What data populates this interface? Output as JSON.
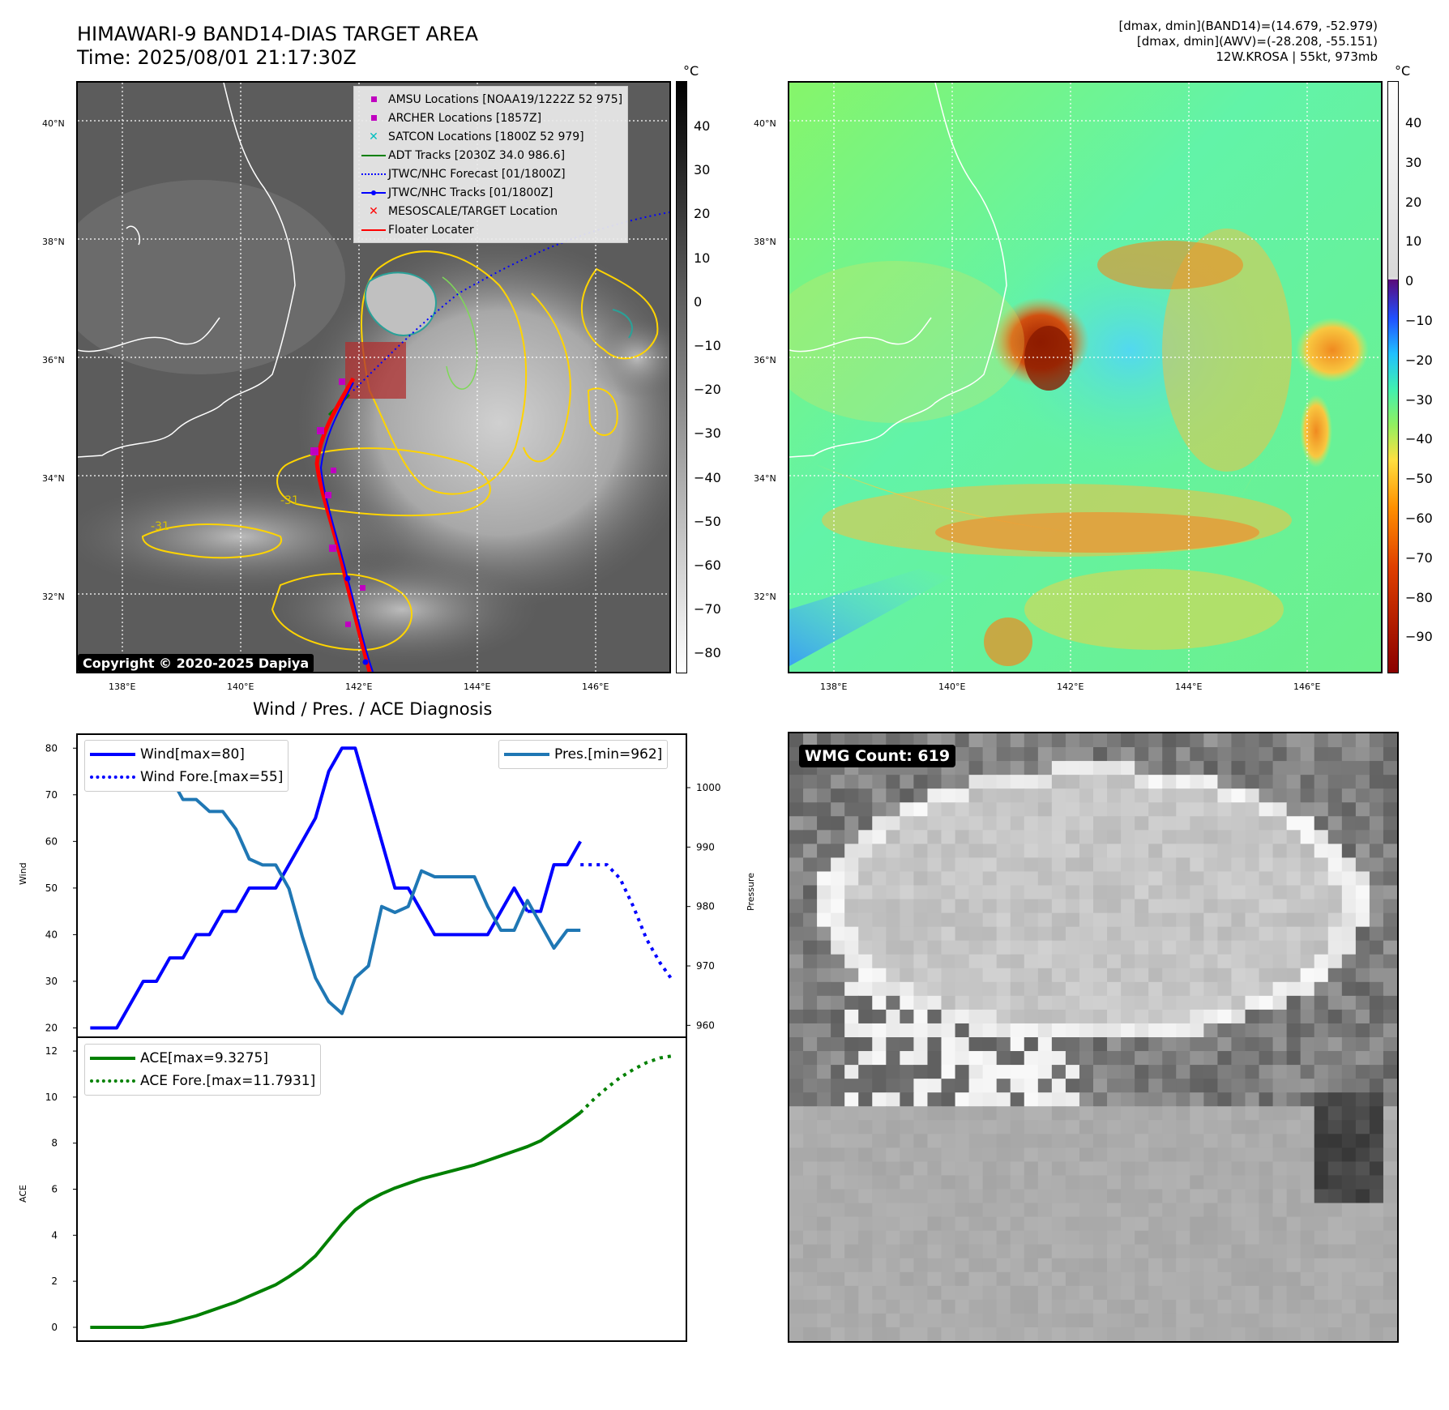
{
  "header": {
    "title_line1": "HIMAWARI-9 BAND14-DIAS TARGET AREA",
    "title_line2": "Time: 2025/08/01 21:17:30Z",
    "stats_line1": "[dmax, dmin](BAND14)=(14.679, -52.979)",
    "stats_line2": "[dmax, dmin](AWV)=(-28.208, -55.151)",
    "stats_line3": "12W.KROSA | 55kt, 973mb"
  },
  "map_common": {
    "lon_ticks": [
      "138°E",
      "140°E",
      "142°E",
      "144°E",
      "146°E"
    ],
    "lat_ticks": [
      "40°N",
      "38°N",
      "36°N",
      "34°N",
      "32°N"
    ],
    "contour_label": "-31"
  },
  "map_left": {
    "colorbar_unit": "°C",
    "colorbar_ticks": [
      "40",
      "30",
      "20",
      "10",
      "0",
      "−10",
      "−20",
      "−30",
      "−40",
      "−50",
      "−60",
      "−70",
      "−80"
    ],
    "copyright": "Copyright © 2020-2025 Dapiya",
    "legend": [
      {
        "label": "AMSU Locations [NOAA19/1222Z 52 975]",
        "symbol": "square",
        "color": "#c000c0"
      },
      {
        "label": "ARCHER Locations [1857Z]",
        "symbol": "square",
        "color": "#c000c0"
      },
      {
        "label": "SATCON Locations [1800Z 52 979]",
        "symbol": "x",
        "color": "#00bfbf"
      },
      {
        "label": "ADT Tracks [2030Z 34.0 986.6]",
        "symbol": "line",
        "color": "#008000"
      },
      {
        "label": "JTWC/NHC Forecast [01/1800Z]",
        "symbol": "dotted",
        "color": "#0000ff"
      },
      {
        "label": "JTWC/NHC Tracks [01/1800Z]",
        "symbol": "line-dot",
        "color": "#0000ff"
      },
      {
        "label": "MESOSCALE/TARGET Location",
        "symbol": "x",
        "color": "#ff0000"
      },
      {
        "label": "Floater Locater",
        "symbol": "line",
        "color": "#ff0000"
      }
    ]
  },
  "map_right": {
    "colorbar_unit": "°C",
    "colorbar_ticks": [
      "40",
      "30",
      "20",
      "10",
      "0",
      "−10",
      "−20",
      "−30",
      "−40",
      "−50",
      "−60",
      "−70",
      "−80",
      "−90"
    ]
  },
  "diagnosis": {
    "title": "Wind / Pres. / ACE Diagnosis",
    "wind_ylabel": "Wind",
    "pres_ylabel": "Pressure",
    "ace_ylabel": "ACE",
    "legend_wind": "Wind[max=80]",
    "legend_wind_fore": "Wind Fore.[max=55]",
    "legend_pres": "Pres.[min=962]",
    "legend_ace": "ACE[max=9.3275]",
    "legend_ace_fore": "ACE Fore.[max=11.7931]"
  },
  "wmg": {
    "label": "WMG Count: 619"
  },
  "chart_data": [
    {
      "type": "line",
      "title": "Wind / Pres. / ACE Diagnosis",
      "ylabel": "Wind",
      "ylim": [
        18,
        83
      ],
      "y_ticks": [
        20,
        30,
        40,
        50,
        60,
        70,
        80
      ],
      "x_range": [
        -1,
        45
      ],
      "series": [
        {
          "name": "Wind[max=80]",
          "color": "#0000ff",
          "style": "solid",
          "x": [
            0,
            1,
            2,
            3,
            4,
            5,
            6,
            7,
            8,
            9,
            10,
            11,
            12,
            13,
            14,
            15,
            16,
            17,
            18,
            19,
            20,
            21,
            22,
            23,
            24,
            25,
            26,
            27,
            28,
            29,
            30,
            31,
            32,
            33
          ],
          "values": [
            20,
            20,
            20,
            25,
            30,
            30,
            35,
            35,
            40,
            40,
            45,
            45,
            50,
            50,
            50,
            55,
            60,
            65,
            75,
            80,
            80,
            70,
            60,
            50,
            50,
            45,
            40,
            40,
            40,
            40,
            40,
            45,
            50,
            45
          ]
        },
        {
          "name": "Wind[max=80]",
          "color": "#0000ff",
          "style": "solid",
          "x": [
            33,
            34,
            35,
            36,
            37
          ],
          "values": [
            45,
            45,
            55,
            55,
            60
          ]
        },
        {
          "name": "Wind Fore.[max=55]",
          "color": "#0000ff",
          "style": "dotted",
          "x": [
            37,
            38,
            39,
            40,
            41,
            42,
            43,
            44
          ],
          "values": [
            55,
            55,
            55,
            52,
            46,
            39,
            34,
            30
          ]
        }
      ]
    },
    {
      "type": "line",
      "ylabel": "Pressure",
      "ylim": [
        958,
        1009
      ],
      "y_ticks": [
        960,
        970,
        980,
        990,
        1000
      ],
      "x_range": [
        -1,
        45
      ],
      "series": [
        {
          "name": "Pres.[min=962]",
          "color": "#1f77b4",
          "style": "solid",
          "x": [
            0,
            1,
            2,
            3,
            4,
            5,
            6,
            7,
            8,
            9,
            10,
            11,
            12,
            13,
            14,
            15,
            16,
            17,
            18,
            19,
            20,
            21,
            22,
            23,
            24,
            25,
            26,
            27,
            28,
            29,
            30,
            31,
            32,
            33,
            34,
            35,
            36,
            37
          ],
          "values": [
            1007,
            1007,
            1007,
            1003,
            1003,
            1002,
            1002,
            998,
            998,
            996,
            996,
            993,
            988,
            987,
            987,
            983,
            975,
            968,
            964,
            962,
            968,
            970,
            980,
            979,
            980,
            986,
            985,
            985,
            985,
            985,
            980,
            976,
            976,
            981,
            977,
            973,
            976,
            976
          ]
        }
      ]
    },
    {
      "type": "line",
      "ylabel": "ACE",
      "ylim": [
        -0.6,
        12.6
      ],
      "y_ticks": [
        0,
        2,
        4,
        6,
        8,
        10,
        12
      ],
      "x_range": [
        -1,
        45
      ],
      "series": [
        {
          "name": "ACE[max=9.3275]",
          "color": "#008000",
          "style": "solid",
          "x": [
            0,
            1,
            2,
            3,
            4,
            5,
            6,
            7,
            8,
            9,
            10,
            11,
            12,
            13,
            14,
            15,
            16,
            17,
            18,
            19,
            20,
            21,
            22,
            23,
            24,
            25,
            26,
            27,
            28,
            29,
            30,
            31,
            32,
            33,
            34,
            35,
            36,
            37
          ],
          "values": [
            0,
            0,
            0,
            0,
            0,
            0.1,
            0.2,
            0.35,
            0.5,
            0.7,
            0.9,
            1.1,
            1.35,
            1.6,
            1.85,
            2.2,
            2.6,
            3.1,
            3.8,
            4.5,
            5.1,
            5.5,
            5.8,
            6.05,
            6.25,
            6.45,
            6.6,
            6.75,
            6.9,
            7.05,
            7.25,
            7.45,
            7.65,
            7.85,
            8.1,
            8.5,
            8.9,
            9.3275
          ]
        },
        {
          "name": "ACE Fore.[max=11.7931]",
          "color": "#008000",
          "style": "dotted",
          "x": [
            37,
            38,
            39,
            40,
            41,
            42,
            43,
            44
          ],
          "values": [
            9.3275,
            9.9,
            10.4,
            10.85,
            11.2,
            11.5,
            11.7,
            11.7931
          ]
        }
      ]
    }
  ]
}
